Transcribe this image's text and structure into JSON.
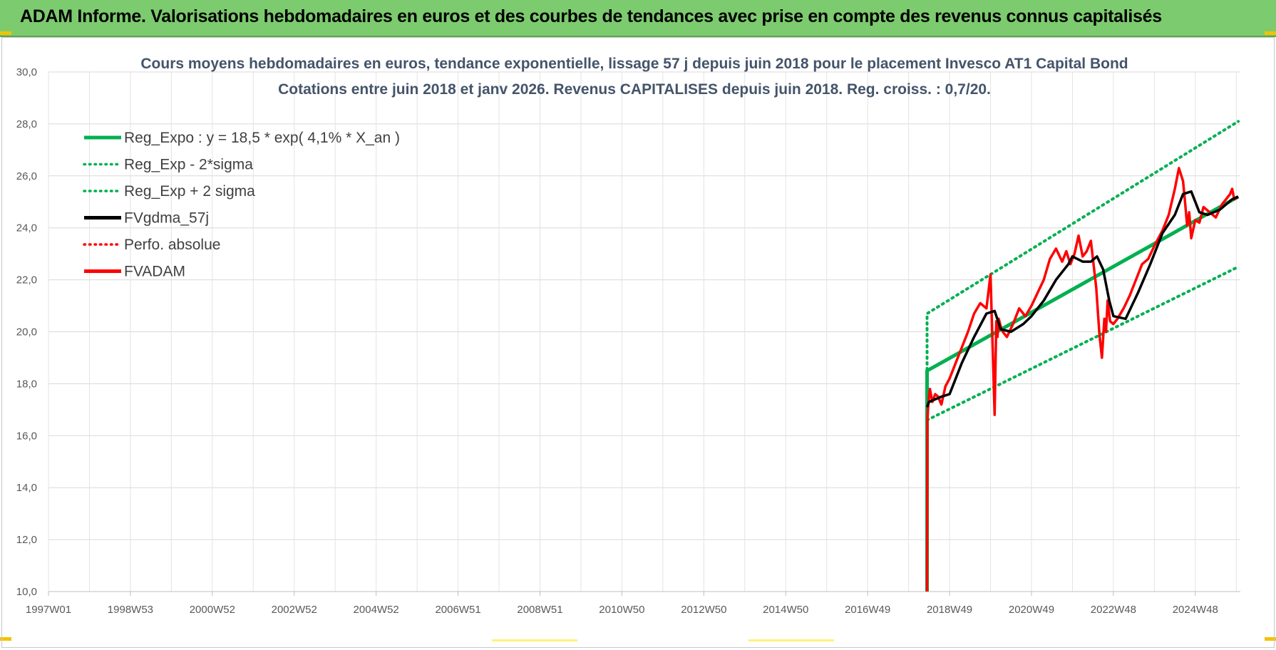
{
  "banner": {
    "title": "ADAM Informe. Valorisations hebdomadaires en euros et des courbes de tendances avec prise en compte des revenus connus capitalisés"
  },
  "colors": {
    "banner": "#7ccb6e",
    "reg": "#00b050",
    "gdma": "#000000",
    "adam": "#ff0000",
    "title": "#44546a"
  },
  "chart_data": {
    "type": "line",
    "title": "Cours moyens hebdomadaires en euros, tendance exponentielle, lissage 57 j depuis juin 2018 pour le placement Invesco AT1 Capital Bond",
    "subtitle": "Cotations entre juin 2018 et janv 2026. Revenus CAPITALISES depuis juin 2018. Reg. croiss. : 0,7/20.",
    "xlabel": "",
    "ylabel": "",
    "ylim": [
      10,
      30
    ],
    "yticks": [
      "10,0",
      "12,0",
      "14,0",
      "16,0",
      "18,0",
      "20,0",
      "22,0",
      "24,0",
      "26,0",
      "28,0",
      "30,0"
    ],
    "xlim": [
      1997.0,
      2026.1
    ],
    "xticks": [
      {
        "label": "1997W01",
        "x": 1997.0
      },
      {
        "label": "1998W53",
        "x": 1999.0
      },
      {
        "label": "2000W52",
        "x": 2001.0
      },
      {
        "label": "2002W52",
        "x": 2003.0
      },
      {
        "label": "2004W52",
        "x": 2005.0
      },
      {
        "label": "2006W51",
        "x": 2007.0
      },
      {
        "label": "2008W51",
        "x": 2009.0
      },
      {
        "label": "2010W50",
        "x": 2011.0
      },
      {
        "label": "2012W50",
        "x": 2013.0
      },
      {
        "label": "2014W50",
        "x": 2015.0
      },
      {
        "label": "2016W49",
        "x": 2017.0
      },
      {
        "label": "2018W49",
        "x": 2019.0
      },
      {
        "label": "2020W49",
        "x": 2021.0
      },
      {
        "label": "2022W48",
        "x": 2023.0
      },
      {
        "label": "2024W48",
        "x": 2025.0
      }
    ],
    "grid": true,
    "legend_position": "top-left",
    "series": [
      {
        "name": "Reg_Expo : y = 18,5 * exp( 4,1% *  X_an )",
        "style": "solid",
        "color": "#00b050",
        "x": [
          2018.45,
          2018.45,
          2026.05
        ],
        "y": [
          10.0,
          18.5,
          25.2
        ]
      },
      {
        "name": "Reg_Exp - 2*sigma",
        "style": "dotted",
        "color": "#00b050",
        "x": [
          2018.45,
          2026.05
        ],
        "y": [
          16.6,
          22.5
        ]
      },
      {
        "name": "Reg_Exp + 2 sigma",
        "style": "dotted",
        "color": "#00b050",
        "x": [
          2018.45,
          2018.45,
          2026.05
        ],
        "y": [
          17.0,
          20.7,
          28.1
        ]
      },
      {
        "name": "FVgdma_57j",
        "style": "solid",
        "color": "#000000",
        "x": [
          2018.45,
          2018.5,
          2018.8,
          2019.0,
          2019.3,
          2019.6,
          2019.9,
          2020.1,
          2020.25,
          2020.5,
          2020.8,
          2021.0,
          2021.3,
          2021.6,
          2021.9,
          2022.0,
          2022.25,
          2022.45,
          2022.6,
          2022.75,
          2022.9,
          2023.0,
          2023.3,
          2023.6,
          2023.9,
          2024.2,
          2024.5,
          2024.7,
          2024.9,
          2025.1,
          2025.3,
          2025.6,
          2025.9,
          2026.05
        ],
        "y": [
          17.1,
          17.3,
          17.5,
          17.6,
          18.8,
          19.8,
          20.7,
          20.8,
          20.1,
          20.0,
          20.3,
          20.6,
          21.2,
          22.0,
          22.6,
          22.9,
          22.7,
          22.7,
          22.9,
          22.4,
          21.2,
          20.6,
          20.5,
          21.5,
          22.6,
          23.8,
          24.5,
          25.3,
          25.4,
          24.6,
          24.5,
          24.7,
          25.1,
          25.2
        ]
      },
      {
        "name": "Perfo. absolue",
        "style": "dotted",
        "color": "#ff0000",
        "x": [],
        "y": []
      },
      {
        "name": "FVADAM",
        "style": "solid",
        "color": "#ff0000",
        "x": [
          2018.45,
          2018.46,
          2018.48,
          2018.52,
          2018.58,
          2018.65,
          2018.72,
          2018.8,
          2018.9,
          2019.0,
          2019.15,
          2019.3,
          2019.45,
          2019.6,
          2019.75,
          2019.9,
          2020.0,
          2020.05,
          2020.1,
          2020.14,
          2020.17,
          2020.2,
          2020.25,
          2020.3,
          2020.4,
          2020.55,
          2020.7,
          2020.85,
          2021.0,
          2021.15,
          2021.3,
          2021.45,
          2021.6,
          2021.75,
          2021.85,
          2021.95,
          2022.05,
          2022.15,
          2022.25,
          2022.35,
          2022.45,
          2022.5,
          2022.58,
          2022.66,
          2022.72,
          2022.78,
          2022.82,
          2022.86,
          2022.92,
          2023.0,
          2023.1,
          2023.25,
          2023.4,
          2023.55,
          2023.7,
          2023.85,
          2024.0,
          2024.2,
          2024.35,
          2024.5,
          2024.6,
          2024.7,
          2024.75,
          2024.8,
          2024.85,
          2024.9,
          2025.0,
          2025.1,
          2025.2,
          2025.35,
          2025.5,
          2025.65,
          2025.75,
          2025.85,
          2025.9,
          2025.95,
          2026.05
        ],
        "y": [
          10.0,
          16.6,
          17.2,
          17.8,
          17.3,
          17.6,
          17.5,
          17.2,
          17.9,
          18.2,
          18.8,
          19.4,
          20.0,
          20.7,
          21.1,
          20.9,
          22.2,
          19.5,
          16.8,
          20.4,
          19.8,
          20.5,
          20.2,
          20.0,
          19.8,
          20.3,
          20.9,
          20.6,
          21.0,
          21.5,
          22.0,
          22.8,
          23.2,
          22.7,
          23.1,
          22.6,
          23.0,
          23.7,
          22.9,
          23.1,
          23.5,
          22.8,
          21.7,
          19.9,
          19.0,
          20.5,
          20.0,
          21.2,
          20.4,
          20.3,
          20.5,
          20.9,
          21.4,
          22.0,
          22.6,
          22.8,
          23.3,
          23.9,
          24.5,
          25.5,
          26.3,
          25.8,
          25.0,
          24.1,
          24.6,
          23.6,
          24.3,
          24.2,
          24.8,
          24.6,
          24.4,
          24.9,
          25.1,
          25.3,
          25.5,
          25.1,
          25.2
        ]
      }
    ]
  }
}
